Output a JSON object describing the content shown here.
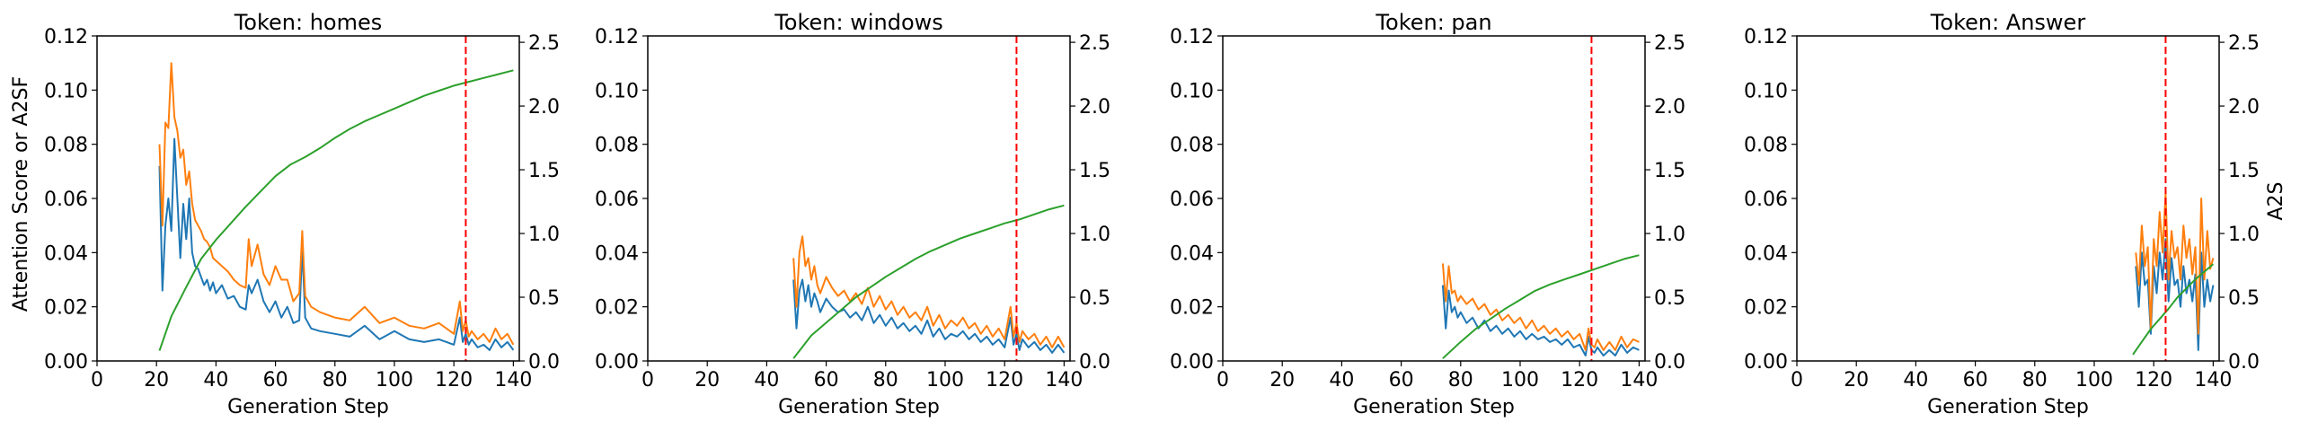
{
  "figure": {
    "left_ylabel": "Attention Score or A2SF",
    "right_ylabel": "A2S"
  },
  "chart_data": [
    {
      "type": "line",
      "title": "Token: homes",
      "xlabel": "Generation Step",
      "ylabel": "Attention Score or A2SF",
      "y2label": "",
      "xlim": [
        0,
        142
      ],
      "ylim": [
        0,
        0.12
      ],
      "y2lim": [
        0,
        2.55
      ],
      "xticks": [
        0,
        20,
        40,
        60,
        80,
        100,
        120,
        140
      ],
      "yticks": [
        0.0,
        0.02,
        0.04,
        0.06,
        0.08,
        0.1,
        0.12
      ],
      "y2ticks": [
        0.0,
        0.5,
        1.0,
        1.5,
        2.0,
        2.5
      ],
      "vline": 124,
      "series": [
        {
          "color": "#1f77b4",
          "axis": "left",
          "x": [
            21,
            22,
            23,
            24,
            25,
            26,
            27,
            28,
            29,
            30,
            31,
            32,
            33,
            34,
            35,
            36,
            37,
            38,
            39,
            40,
            42,
            44,
            46,
            48,
            50,
            51,
            52,
            54,
            56,
            58,
            60,
            62,
            64,
            66,
            68,
            69,
            70,
            72,
            75,
            80,
            85,
            90,
            95,
            100,
            105,
            110,
            115,
            120,
            122,
            123,
            124,
            125,
            126,
            128,
            130,
            132,
            134,
            136,
            138,
            140
          ],
          "y": [
            0.072,
            0.026,
            0.05,
            0.06,
            0.048,
            0.082,
            0.06,
            0.038,
            0.058,
            0.045,
            0.06,
            0.04,
            0.035,
            0.034,
            0.031,
            0.028,
            0.03,
            0.026,
            0.029,
            0.025,
            0.028,
            0.023,
            0.024,
            0.02,
            0.019,
            0.028,
            0.025,
            0.03,
            0.022,
            0.018,
            0.022,
            0.016,
            0.02,
            0.014,
            0.015,
            0.042,
            0.016,
            0.012,
            0.011,
            0.01,
            0.009,
            0.013,
            0.008,
            0.011,
            0.008,
            0.007,
            0.008,
            0.006,
            0.016,
            0.007,
            0.01,
            0.006,
            0.008,
            0.005,
            0.006,
            0.004,
            0.008,
            0.005,
            0.007,
            0.004
          ]
        },
        {
          "color": "#ff7f0e",
          "axis": "left",
          "x": [
            21,
            22,
            23,
            24,
            25,
            26,
            27,
            28,
            29,
            30,
            31,
            32,
            33,
            34,
            35,
            36,
            37,
            38,
            39,
            40,
            42,
            44,
            46,
            48,
            50,
            51,
            52,
            54,
            56,
            58,
            60,
            62,
            64,
            66,
            68,
            69,
            70,
            72,
            75,
            80,
            85,
            90,
            95,
            100,
            105,
            110,
            115,
            120,
            122,
            123,
            124,
            125,
            126,
            128,
            130,
            132,
            134,
            136,
            138,
            140
          ],
          "y": [
            0.08,
            0.05,
            0.088,
            0.086,
            0.11,
            0.09,
            0.085,
            0.075,
            0.078,
            0.065,
            0.07,
            0.058,
            0.052,
            0.05,
            0.048,
            0.045,
            0.044,
            0.042,
            0.038,
            0.037,
            0.035,
            0.033,
            0.03,
            0.028,
            0.027,
            0.045,
            0.035,
            0.043,
            0.032,
            0.028,
            0.035,
            0.03,
            0.03,
            0.022,
            0.025,
            0.048,
            0.024,
            0.02,
            0.018,
            0.016,
            0.015,
            0.02,
            0.014,
            0.016,
            0.013,
            0.012,
            0.014,
            0.01,
            0.022,
            0.011,
            0.015,
            0.009,
            0.011,
            0.008,
            0.01,
            0.007,
            0.012,
            0.008,
            0.01,
            0.006
          ]
        },
        {
          "color": "#2ca02c",
          "axis": "right",
          "x": [
            21,
            25,
            30,
            35,
            40,
            45,
            50,
            55,
            60,
            65,
            70,
            75,
            80,
            85,
            90,
            95,
            100,
            105,
            110,
            115,
            120,
            125,
            130,
            135,
            140
          ],
          "y": [
            0.08,
            0.35,
            0.58,
            0.8,
            0.95,
            1.08,
            1.21,
            1.33,
            1.45,
            1.54,
            1.6,
            1.67,
            1.75,
            1.82,
            1.88,
            1.93,
            1.98,
            2.03,
            2.08,
            2.12,
            2.16,
            2.19,
            2.22,
            2.25,
            2.28
          ]
        }
      ]
    },
    {
      "type": "line",
      "title": "Token: windows",
      "xlabel": "Generation Step",
      "ylabel": "",
      "y2label": "",
      "xlim": [
        0,
        142
      ],
      "ylim": [
        0,
        0.12
      ],
      "y2lim": [
        0,
        2.55
      ],
      "xticks": [
        0,
        20,
        40,
        60,
        80,
        100,
        120,
        140
      ],
      "yticks": [
        0.0,
        0.02,
        0.04,
        0.06,
        0.08,
        0.1,
        0.12
      ],
      "y2ticks": [
        0.0,
        0.5,
        1.0,
        1.5,
        2.0,
        2.5
      ],
      "vline": 124,
      "series": [
        {
          "color": "#1f77b4",
          "axis": "left",
          "x": [
            49,
            50,
            51,
            52,
            53,
            54,
            55,
            56,
            57,
            58,
            60,
            62,
            64,
            66,
            68,
            70,
            72,
            74,
            76,
            78,
            80,
            82,
            84,
            86,
            88,
            90,
            92,
            94,
            96,
            98,
            100,
            102,
            104,
            106,
            108,
            110,
            112,
            114,
            116,
            118,
            120,
            122,
            123,
            124,
            125,
            126,
            128,
            130,
            132,
            134,
            136,
            138,
            140
          ],
          "y": [
            0.03,
            0.012,
            0.026,
            0.03,
            0.022,
            0.028,
            0.02,
            0.025,
            0.022,
            0.018,
            0.023,
            0.02,
            0.018,
            0.019,
            0.016,
            0.018,
            0.015,
            0.02,
            0.014,
            0.017,
            0.013,
            0.016,
            0.012,
            0.014,
            0.011,
            0.013,
            0.01,
            0.015,
            0.009,
            0.012,
            0.008,
            0.01,
            0.009,
            0.011,
            0.008,
            0.01,
            0.007,
            0.009,
            0.006,
            0.008,
            0.005,
            0.016,
            0.006,
            0.01,
            0.004,
            0.008,
            0.005,
            0.007,
            0.004,
            0.006,
            0.003,
            0.006,
            0.003
          ]
        },
        {
          "color": "#ff7f0e",
          "axis": "left",
          "x": [
            49,
            50,
            51,
            52,
            53,
            54,
            55,
            56,
            57,
            58,
            60,
            62,
            64,
            66,
            68,
            70,
            72,
            74,
            76,
            78,
            80,
            82,
            84,
            86,
            88,
            90,
            92,
            94,
            96,
            98,
            100,
            102,
            104,
            106,
            108,
            110,
            112,
            114,
            116,
            118,
            120,
            122,
            123,
            124,
            125,
            126,
            128,
            130,
            132,
            134,
            136,
            138,
            140
          ],
          "y": [
            0.038,
            0.02,
            0.04,
            0.046,
            0.035,
            0.038,
            0.03,
            0.035,
            0.028,
            0.025,
            0.031,
            0.027,
            0.024,
            0.026,
            0.022,
            0.025,
            0.021,
            0.027,
            0.02,
            0.024,
            0.019,
            0.022,
            0.017,
            0.02,
            0.016,
            0.018,
            0.015,
            0.02,
            0.013,
            0.017,
            0.012,
            0.015,
            0.013,
            0.016,
            0.012,
            0.014,
            0.01,
            0.013,
            0.009,
            0.012,
            0.008,
            0.02,
            0.009,
            0.014,
            0.007,
            0.011,
            0.008,
            0.01,
            0.006,
            0.009,
            0.005,
            0.009,
            0.005
          ]
        },
        {
          "color": "#2ca02c",
          "axis": "right",
          "x": [
            49,
            55,
            60,
            65,
            70,
            75,
            80,
            85,
            90,
            95,
            100,
            105,
            110,
            115,
            120,
            125,
            130,
            135,
            140
          ],
          "y": [
            0.02,
            0.2,
            0.3,
            0.4,
            0.5,
            0.58,
            0.66,
            0.73,
            0.8,
            0.86,
            0.91,
            0.96,
            1.0,
            1.04,
            1.08,
            1.11,
            1.15,
            1.19,
            1.22
          ]
        }
      ]
    },
    {
      "type": "line",
      "title": "Token: pan",
      "xlabel": "Generation Step",
      "ylabel": "",
      "y2label": "",
      "xlim": [
        0,
        142
      ],
      "ylim": [
        0,
        0.12
      ],
      "y2lim": [
        0,
        2.55
      ],
      "xticks": [
        0,
        20,
        40,
        60,
        80,
        100,
        120,
        140
      ],
      "yticks": [
        0.0,
        0.02,
        0.04,
        0.06,
        0.08,
        0.1,
        0.12
      ],
      "y2ticks": [
        0.0,
        0.5,
        1.0,
        1.5,
        2.0,
        2.5
      ],
      "vline": 124,
      "series": [
        {
          "color": "#1f77b4",
          "axis": "left",
          "x": [
            74,
            75,
            76,
            77,
            78,
            79,
            80,
            82,
            84,
            86,
            88,
            90,
            92,
            94,
            96,
            98,
            100,
            102,
            104,
            106,
            108,
            110,
            112,
            114,
            116,
            118,
            120,
            122,
            123,
            124,
            125,
            126,
            128,
            130,
            132,
            134,
            136,
            138,
            140
          ],
          "y": [
            0.028,
            0.012,
            0.026,
            0.018,
            0.02,
            0.016,
            0.018,
            0.014,
            0.016,
            0.012,
            0.015,
            0.011,
            0.013,
            0.01,
            0.012,
            0.009,
            0.011,
            0.008,
            0.01,
            0.008,
            0.009,
            0.007,
            0.008,
            0.006,
            0.008,
            0.005,
            0.006,
            0.002,
            0.009,
            0.004,
            0.003,
            0.005,
            0.002,
            0.004,
            0.002,
            0.006,
            0.003,
            0.005,
            0.004
          ]
        },
        {
          "color": "#ff7f0e",
          "axis": "left",
          "x": [
            74,
            75,
            76,
            77,
            78,
            79,
            80,
            82,
            84,
            86,
            88,
            90,
            92,
            94,
            96,
            98,
            100,
            102,
            104,
            106,
            108,
            110,
            112,
            114,
            116,
            118,
            120,
            122,
            123,
            124,
            125,
            126,
            128,
            130,
            132,
            134,
            136,
            138,
            140
          ],
          "y": [
            0.036,
            0.022,
            0.035,
            0.025,
            0.026,
            0.022,
            0.024,
            0.021,
            0.023,
            0.019,
            0.021,
            0.017,
            0.019,
            0.015,
            0.017,
            0.014,
            0.016,
            0.012,
            0.015,
            0.011,
            0.013,
            0.01,
            0.012,
            0.009,
            0.011,
            0.008,
            0.01,
            0.004,
            0.012,
            0.006,
            0.005,
            0.008,
            0.004,
            0.007,
            0.004,
            0.009,
            0.005,
            0.008,
            0.007
          ]
        },
        {
          "color": "#2ca02c",
          "axis": "right",
          "x": [
            74,
            80,
            85,
            90,
            95,
            100,
            105,
            110,
            115,
            120,
            125,
            130,
            135,
            140
          ],
          "y": [
            0.02,
            0.15,
            0.25,
            0.33,
            0.41,
            0.48,
            0.55,
            0.6,
            0.64,
            0.68,
            0.72,
            0.76,
            0.8,
            0.83
          ]
        }
      ]
    },
    {
      "type": "line",
      "title": "Token: Answer",
      "xlabel": "Generation Step",
      "ylabel": "",
      "y2label": "A2S",
      "xlim": [
        0,
        142
      ],
      "ylim": [
        0,
        0.12
      ],
      "y2lim": [
        0,
        2.55
      ],
      "xticks": [
        0,
        20,
        40,
        60,
        80,
        100,
        120,
        140
      ],
      "yticks": [
        0.0,
        0.02,
        0.04,
        0.06,
        0.08,
        0.1,
        0.12
      ],
      "y2ticks": [
        0.0,
        0.5,
        1.0,
        1.5,
        2.0,
        2.5
      ],
      "vline": 124,
      "series": [
        {
          "color": "#1f77b4",
          "axis": "left",
          "x": [
            114,
            115,
            116,
            117,
            118,
            119,
            120,
            121,
            122,
            123,
            124,
            125,
            126,
            127,
            128,
            129,
            130,
            131,
            132,
            133,
            134,
            135,
            136,
            137,
            138,
            139,
            140
          ],
          "y": [
            0.035,
            0.02,
            0.04,
            0.028,
            0.03,
            0.01,
            0.035,
            0.025,
            0.04,
            0.03,
            0.045,
            0.022,
            0.038,
            0.028,
            0.03,
            0.02,
            0.035,
            0.025,
            0.03,
            0.022,
            0.032,
            0.004,
            0.04,
            0.02,
            0.03,
            0.022,
            0.028
          ]
        },
        {
          "color": "#ff7f0e",
          "axis": "left",
          "x": [
            114,
            115,
            116,
            117,
            118,
            119,
            120,
            121,
            122,
            123,
            124,
            125,
            126,
            127,
            128,
            129,
            130,
            131,
            132,
            133,
            134,
            135,
            136,
            137,
            138,
            139,
            140
          ],
          "y": [
            0.04,
            0.028,
            0.05,
            0.035,
            0.042,
            0.012,
            0.045,
            0.035,
            0.055,
            0.04,
            0.062,
            0.03,
            0.048,
            0.038,
            0.042,
            0.03,
            0.05,
            0.038,
            0.045,
            0.032,
            0.042,
            0.01,
            0.06,
            0.03,
            0.048,
            0.034,
            0.038
          ]
        },
        {
          "color": "#2ca02c",
          "axis": "right",
          "x": [
            113,
            116,
            119,
            122,
            125,
            128,
            131,
            134,
            137,
            140
          ],
          "y": [
            0.05,
            0.15,
            0.25,
            0.33,
            0.41,
            0.5,
            0.57,
            0.64,
            0.7,
            0.76
          ]
        }
      ]
    }
  ]
}
